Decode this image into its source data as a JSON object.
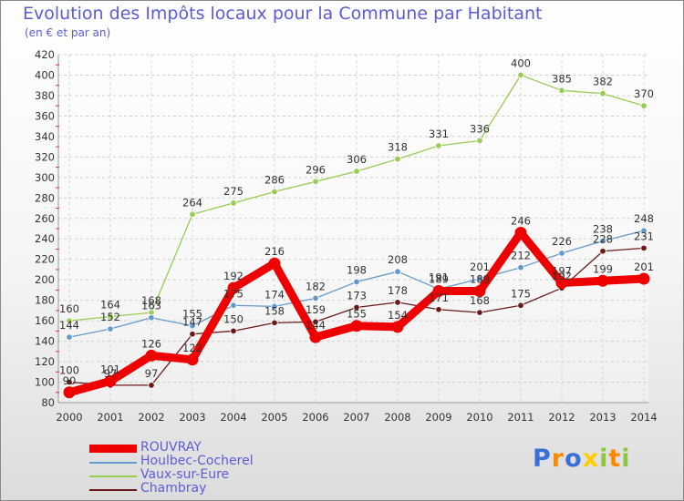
{
  "chart_data": {
    "type": "line",
    "title": "Evolution des Impôts locaux pour la Commune par Habitant",
    "subtitle": "(en € et par an)",
    "xlabel": "",
    "ylabel": "",
    "ylim": [
      80,
      420
    ],
    "yticks": [
      80,
      100,
      120,
      140,
      160,
      180,
      200,
      220,
      240,
      260,
      280,
      300,
      320,
      340,
      360,
      380,
      400,
      420
    ],
    "categories": [
      "2000",
      "2001",
      "2002",
      "2003",
      "2004",
      "2005",
      "2006",
      "2007",
      "2008",
      "2009",
      "2010",
      "2011",
      "2012",
      "2013",
      "2014"
    ],
    "grid": true,
    "legend_position": "bottom-left",
    "series": [
      {
        "name": "Vaux-sur-Eure",
        "color": "#99cc55",
        "values": [
          160,
          164,
          168,
          264,
          275,
          286,
          296,
          306,
          318,
          331,
          336,
          400,
          385,
          382,
          370
        ]
      },
      {
        "name": "Houlbec-Cocherel",
        "color": "#6699cc",
        "values": [
          144,
          152,
          163,
          155,
          175,
          174,
          182,
          198,
          208,
          191,
          201,
          212,
          226,
          238,
          248
        ]
      },
      {
        "name": "Chambray",
        "color": "#6b1a1a",
        "values": [
          100,
          97,
          97,
          147,
          150,
          158,
          159,
          173,
          178,
          171,
          168,
          175,
          192,
          228,
          231
        ]
      },
      {
        "name": "ROUVRAY",
        "color": "#ee0000",
        "values": [
          90,
          101,
          126,
          122,
          192,
          216,
          144,
          155,
          154,
          189,
          189,
          246,
          197,
          199,
          201
        ]
      }
    ],
    "labels": [
      {
        "text": "160",
        "x": "2000",
        "y": 160,
        "color": "#333333"
      },
      {
        "text": "164",
        "x": "2001",
        "y": 164,
        "color": "#333333"
      },
      {
        "text": "168",
        "x": "2002",
        "y": 168,
        "color": "#333333"
      },
      {
        "text": "264",
        "x": "2003",
        "y": 264,
        "color": "#333333"
      },
      {
        "text": "275",
        "x": "2004",
        "y": 275,
        "color": "#333333"
      },
      {
        "text": "286",
        "x": "2005",
        "y": 286,
        "color": "#333333"
      },
      {
        "text": "296",
        "x": "2006",
        "y": 296,
        "color": "#333333"
      },
      {
        "text": "306",
        "x": "2007",
        "y": 306,
        "color": "#333333"
      },
      {
        "text": "318",
        "x": "2008",
        "y": 318,
        "color": "#333333"
      },
      {
        "text": "331",
        "x": "2009",
        "y": 331,
        "color": "#333333"
      },
      {
        "text": "336",
        "x": "2010",
        "y": 336,
        "color": "#333333"
      },
      {
        "text": "400",
        "x": "2011",
        "y": 400,
        "color": "#333333"
      },
      {
        "text": "385",
        "x": "2012",
        "y": 385,
        "color": "#333333"
      },
      {
        "text": "382",
        "x": "2013",
        "y": 382,
        "color": "#333333"
      },
      {
        "text": "370",
        "x": "2014",
        "y": 370,
        "color": "#333333"
      },
      {
        "text": "144",
        "x": "2000",
        "y": 144,
        "color": "#333333"
      },
      {
        "text": "152",
        "x": "2001",
        "y": 152,
        "color": "#333333"
      },
      {
        "text": "163",
        "x": "2002",
        "y": 163,
        "color": "#333333"
      },
      {
        "text": "155",
        "x": "2003",
        "y": 155,
        "color": "#333333"
      },
      {
        "text": "175",
        "x": "2004",
        "y": 175,
        "color": "#333333"
      },
      {
        "text": "174",
        "x": "2005",
        "y": 174,
        "color": "#333333"
      },
      {
        "text": "182",
        "x": "2006",
        "y": 182,
        "color": "#333333"
      },
      {
        "text": "198",
        "x": "2007",
        "y": 198,
        "color": "#333333"
      },
      {
        "text": "208",
        "x": "2008",
        "y": 208,
        "color": "#333333"
      },
      {
        "text": "191",
        "x": "2009",
        "y": 191,
        "color": "#333333"
      },
      {
        "text": "201",
        "x": "2010",
        "y": 201,
        "color": "#333333"
      },
      {
        "text": "212",
        "x": "2011",
        "y": 212,
        "color": "#333333"
      },
      {
        "text": "226",
        "x": "2012",
        "y": 226,
        "color": "#333333"
      },
      {
        "text": "238",
        "x": "2013",
        "y": 238,
        "color": "#333333"
      },
      {
        "text": "248",
        "x": "2014",
        "y": 248,
        "color": "#333333"
      },
      {
        "text": "100",
        "x": "2000",
        "y": 100,
        "color": "#333333"
      },
      {
        "text": "97",
        "x": "2001",
        "y": 97,
        "color": "#333333"
      },
      {
        "text": "97",
        "x": "2002",
        "y": 97,
        "color": "#333333"
      },
      {
        "text": "147",
        "x": "2003",
        "y": 147,
        "color": "#333333"
      },
      {
        "text": "150",
        "x": "2004",
        "y": 150,
        "color": "#333333"
      },
      {
        "text": "158",
        "x": "2005",
        "y": 158,
        "color": "#333333"
      },
      {
        "text": "159",
        "x": "2006",
        "y": 159,
        "color": "#333333"
      },
      {
        "text": "173",
        "x": "2007",
        "y": 173,
        "color": "#333333"
      },
      {
        "text": "178",
        "x": "2008",
        "y": 178,
        "color": "#333333"
      },
      {
        "text": "171",
        "x": "2009",
        "y": 171,
        "color": "#333333"
      },
      {
        "text": "168",
        "x": "2010",
        "y": 168,
        "color": "#333333"
      },
      {
        "text": "175",
        "x": "2011",
        "y": 175,
        "color": "#333333"
      },
      {
        "text": "192",
        "x": "2012",
        "y": 192,
        "color": "#333333"
      },
      {
        "text": "228",
        "x": "2013",
        "y": 228,
        "color": "#333333"
      },
      {
        "text": "231",
        "x": "2014",
        "y": 231,
        "color": "#333333"
      },
      {
        "text": "90",
        "x": "2000",
        "y": 90,
        "color": "#333333"
      },
      {
        "text": "101",
        "x": "2001",
        "y": 101,
        "color": "#333333"
      },
      {
        "text": "126",
        "x": "2002",
        "y": 126,
        "color": "#333333"
      },
      {
        "text": "122",
        "x": "2003",
        "y": 122,
        "color": "#333333"
      },
      {
        "text": "192",
        "x": "2004",
        "y": 192,
        "color": "#333333"
      },
      {
        "text": "216",
        "x": "2005",
        "y": 216,
        "color": "#333333"
      },
      {
        "text": "144",
        "x": "2006",
        "y": 144,
        "color": "#333333"
      },
      {
        "text": "155",
        "x": "2007",
        "y": 155,
        "color": "#333333"
      },
      {
        "text": "154",
        "x": "2008",
        "y": 154,
        "color": "#333333"
      },
      {
        "text": "189",
        "x": "2009",
        "y": 189,
        "color": "#333333"
      },
      {
        "text": "189",
        "x": "2010",
        "y": 189,
        "color": "#333333"
      },
      {
        "text": "246",
        "x": "2011",
        "y": 246,
        "color": "#333333"
      },
      {
        "text": "197",
        "x": "2012",
        "y": 197,
        "color": "#333333"
      },
      {
        "text": "199",
        "x": "2013",
        "y": 199,
        "color": "#333333"
      },
      {
        "text": "201",
        "x": "2014",
        "y": 201,
        "color": "#333333"
      }
    ]
  },
  "legend": [
    {
      "label": "ROUVRAY",
      "color": "#ee0000"
    },
    {
      "label": "Houlbec-Cocherel",
      "color": "#6699cc"
    },
    {
      "label": "Vaux-sur-Eure",
      "color": "#99cc55"
    },
    {
      "label": "Chambray",
      "color": "#6b1a1a"
    }
  ],
  "logo": {
    "letters": [
      "P",
      "r",
      "o",
      "x",
      "i",
      "t",
      "i"
    ],
    "colors": [
      "#3a6fd8",
      "#ff8a00",
      "#3a6fd8",
      "#ffcc00",
      "#8dc63f",
      "#ff8a00",
      "#8dc63f"
    ]
  }
}
